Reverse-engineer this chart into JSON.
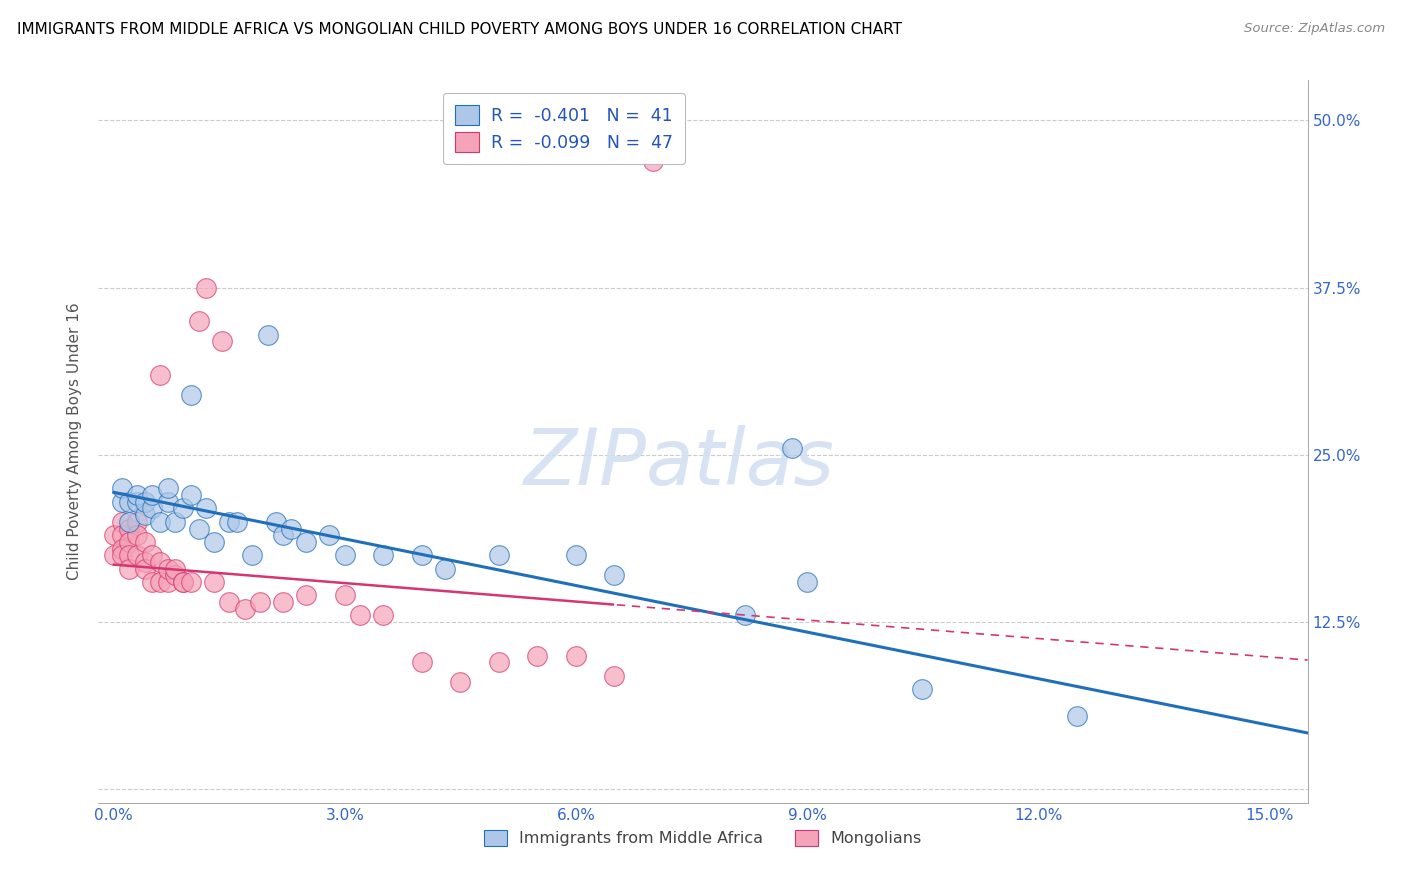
{
  "title": "IMMIGRANTS FROM MIDDLE AFRICA VS MONGOLIAN CHILD POVERTY AMONG BOYS UNDER 16 CORRELATION CHART",
  "source": "Source: ZipAtlas.com",
  "ylabel": "Child Poverty Among Boys Under 16",
  "xlim": [
    -0.002,
    0.155
  ],
  "ylim": [
    -0.01,
    0.53
  ],
  "xticks": [
    0.0,
    0.03,
    0.06,
    0.09,
    0.12,
    0.15
  ],
  "xticklabels": [
    "0.0%",
    "3.0%",
    "6.0%",
    "9.0%",
    "12.0%",
    "15.0%"
  ],
  "yticks": [
    0.0,
    0.125,
    0.25,
    0.375,
    0.5
  ],
  "yticklabels_right": [
    "",
    "12.5%",
    "25.0%",
    "37.5%",
    "50.0%"
  ],
  "legend_label1": "Immigrants from Middle Africa",
  "legend_label2": "Mongolians",
  "blue_color": "#aec7e8",
  "pink_color": "#f4a3b8",
  "blue_line_color": "#1f6fba",
  "pink_line_color": "#d63670",
  "watermark": "ZIPatlas",
  "blue_intercept": 0.222,
  "blue_slope": -1.16,
  "pink_intercept": 0.168,
  "pink_slope": -0.46,
  "blue_dots_x": [
    0.001,
    0.001,
    0.002,
    0.002,
    0.003,
    0.003,
    0.004,
    0.004,
    0.005,
    0.005,
    0.006,
    0.007,
    0.007,
    0.008,
    0.009,
    0.01,
    0.01,
    0.011,
    0.012,
    0.013,
    0.015,
    0.016,
    0.018,
    0.02,
    0.021,
    0.022,
    0.023,
    0.025,
    0.028,
    0.03,
    0.035,
    0.04,
    0.043,
    0.05,
    0.06,
    0.065,
    0.082,
    0.088,
    0.09,
    0.105,
    0.125
  ],
  "blue_dots_y": [
    0.215,
    0.225,
    0.2,
    0.215,
    0.215,
    0.22,
    0.205,
    0.215,
    0.21,
    0.22,
    0.2,
    0.215,
    0.225,
    0.2,
    0.21,
    0.295,
    0.22,
    0.195,
    0.21,
    0.185,
    0.2,
    0.2,
    0.175,
    0.34,
    0.2,
    0.19,
    0.195,
    0.185,
    0.19,
    0.175,
    0.175,
    0.175,
    0.165,
    0.175,
    0.175,
    0.16,
    0.13,
    0.255,
    0.155,
    0.075,
    0.055
  ],
  "pink_dots_x": [
    0.0,
    0.0,
    0.001,
    0.001,
    0.001,
    0.001,
    0.002,
    0.002,
    0.002,
    0.002,
    0.003,
    0.003,
    0.003,
    0.004,
    0.004,
    0.004,
    0.005,
    0.005,
    0.006,
    0.006,
    0.006,
    0.007,
    0.007,
    0.008,
    0.008,
    0.009,
    0.009,
    0.01,
    0.011,
    0.012,
    0.013,
    0.014,
    0.015,
    0.017,
    0.019,
    0.022,
    0.025,
    0.03,
    0.032,
    0.035,
    0.04,
    0.045,
    0.05,
    0.055,
    0.06,
    0.065,
    0.07
  ],
  "pink_dots_y": [
    0.19,
    0.175,
    0.2,
    0.19,
    0.18,
    0.175,
    0.195,
    0.185,
    0.175,
    0.165,
    0.2,
    0.19,
    0.175,
    0.185,
    0.17,
    0.165,
    0.175,
    0.155,
    0.155,
    0.17,
    0.31,
    0.155,
    0.165,
    0.16,
    0.165,
    0.155,
    0.155,
    0.155,
    0.35,
    0.375,
    0.155,
    0.335,
    0.14,
    0.135,
    0.14,
    0.14,
    0.145,
    0.145,
    0.13,
    0.13,
    0.095,
    0.08,
    0.095,
    0.1,
    0.1,
    0.085,
    0.47
  ]
}
